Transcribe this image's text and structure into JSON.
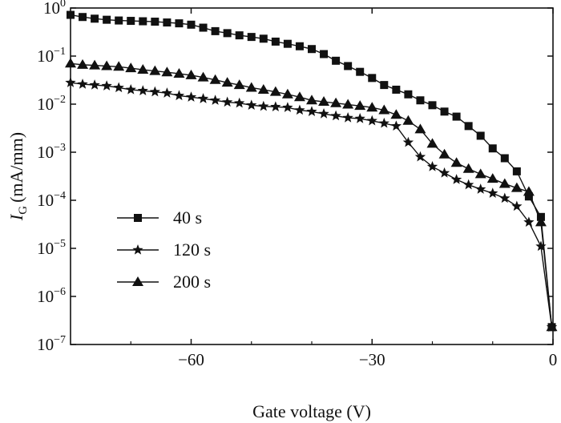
{
  "chart_data": {
    "type": "line",
    "xlabel": "Gate voltage (V)",
    "ylabel": {
      "symbol": "I",
      "subscript": "G",
      "unit": "(mA/mm)"
    },
    "xlim": [
      -80,
      0
    ],
    "ylim": [
      1e-07,
      1
    ],
    "yscale": "log",
    "grid": false,
    "legend_position": "center-left",
    "x_ticks": [
      {
        "value": -60,
        "label": "−60"
      },
      {
        "value": -30,
        "label": "−30"
      },
      {
        "value": 0,
        "label": "0"
      }
    ],
    "y_ticks": [
      {
        "value": 1,
        "base": "10",
        "exp": "0"
      },
      {
        "value": 0.1,
        "base": "10",
        "exp": "−1"
      },
      {
        "value": 0.01,
        "base": "10",
        "exp": "−2"
      },
      {
        "value": 0.001,
        "base": "10",
        "exp": "−3"
      },
      {
        "value": 0.0001,
        "base": "10",
        "exp": "−4"
      },
      {
        "value": 1e-05,
        "base": "10",
        "exp": "−5"
      },
      {
        "value": 1e-06,
        "base": "10",
        "exp": "−6"
      },
      {
        "value": 1e-07,
        "base": "10",
        "exp": "−7"
      }
    ],
    "series": [
      {
        "name": "40 s",
        "marker": "square",
        "x": [
          -80,
          -78,
          -76,
          -74,
          -72,
          -70,
          -68,
          -66,
          -64,
          -62,
          -60,
          -58,
          -56,
          -54,
          -52,
          -50,
          -48,
          -46,
          -44,
          -42,
          -40,
          -38,
          -36,
          -34,
          -32,
          -30,
          -28,
          -26,
          -24,
          -22,
          -20,
          -18,
          -16,
          -14,
          -12,
          -10,
          -8,
          -6,
          -4,
          -2,
          -0.2
        ],
        "y": [
          0.72,
          0.65,
          0.6,
          0.57,
          0.55,
          0.54,
          0.53,
          0.52,
          0.5,
          0.48,
          0.45,
          0.39,
          0.33,
          0.3,
          0.27,
          0.25,
          0.23,
          0.2,
          0.18,
          0.16,
          0.14,
          0.11,
          0.08,
          0.062,
          0.047,
          0.035,
          0.025,
          0.02,
          0.016,
          0.012,
          0.0095,
          0.007,
          0.0055,
          0.0035,
          0.0022,
          0.0012,
          0.00075,
          0.0004,
          0.00012,
          4.5e-05,
          2.3e-07
        ]
      },
      {
        "name": "120 s",
        "marker": "star",
        "x": [
          -80,
          -78,
          -76,
          -74,
          -72,
          -70,
          -68,
          -66,
          -64,
          -62,
          -60,
          -58,
          -56,
          -54,
          -52,
          -50,
          -48,
          -46,
          -44,
          -42,
          -40,
          -38,
          -36,
          -34,
          -32,
          -30,
          -28,
          -26,
          -24,
          -22,
          -20,
          -18,
          -16,
          -14,
          -12,
          -10,
          -8,
          -6,
          -4,
          -2,
          -0.2
        ],
        "y": [
          0.028,
          0.026,
          0.025,
          0.024,
          0.022,
          0.02,
          0.019,
          0.018,
          0.017,
          0.015,
          0.014,
          0.013,
          0.012,
          0.011,
          0.0105,
          0.0095,
          0.009,
          0.0088,
          0.0085,
          0.0075,
          0.007,
          0.0063,
          0.0057,
          0.0052,
          0.005,
          0.0045,
          0.004,
          0.0035,
          0.0016,
          0.0008,
          0.0005,
          0.00037,
          0.00027,
          0.00021,
          0.00017,
          0.00014,
          0.00011,
          7.5e-05,
          3.5e-05,
          1.1e-05,
          2.3e-07
        ]
      },
      {
        "name": "200 s",
        "marker": "triangle",
        "x": [
          -80,
          -78,
          -76,
          -74,
          -72,
          -70,
          -68,
          -66,
          -64,
          -62,
          -60,
          -58,
          -56,
          -54,
          -52,
          -50,
          -48,
          -46,
          -44,
          -42,
          -40,
          -38,
          -36,
          -34,
          -32,
          -30,
          -28,
          -26,
          -24,
          -22,
          -20,
          -18,
          -16,
          -14,
          -12,
          -10,
          -8,
          -6,
          -4,
          -2,
          -0.2
        ],
        "y": [
          0.07,
          0.066,
          0.064,
          0.062,
          0.06,
          0.056,
          0.052,
          0.049,
          0.046,
          0.043,
          0.04,
          0.036,
          0.032,
          0.028,
          0.025,
          0.022,
          0.02,
          0.018,
          0.016,
          0.014,
          0.012,
          0.0112,
          0.0105,
          0.0098,
          0.0092,
          0.0085,
          0.0075,
          0.006,
          0.0045,
          0.003,
          0.0015,
          0.0009,
          0.0006,
          0.00045,
          0.00035,
          0.00028,
          0.00022,
          0.00018,
          0.00015,
          3.5e-05,
          2.3e-07
        ]
      }
    ]
  }
}
